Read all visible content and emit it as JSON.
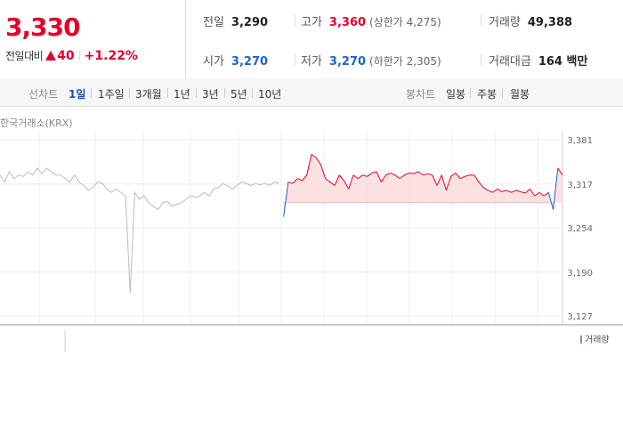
{
  "quote": {
    "price": "3,330",
    "change_label": "전일대비",
    "change_abs": "40",
    "change_pct": "+1.22%",
    "prev_close_label": "전일",
    "prev_close": "3,290",
    "open_label": "시가",
    "open": "3,270",
    "high_label": "고가",
    "high": "3,360",
    "upper_limit": "(상한가 4,275)",
    "low_label": "저가",
    "low": "3,270",
    "lower_limit": "(하한가 2,305)",
    "volume_label": "거래량",
    "volume": "49,388",
    "turnover_label": "거래대금",
    "turnover": "164 백만"
  },
  "period_tabs": {
    "label": "선차트",
    "items": [
      "1일",
      "1주일",
      "3개월",
      "1년",
      "3년",
      "5년",
      "10년"
    ],
    "active": "1일"
  },
  "candle_tabs": {
    "label": "봉차트",
    "items": [
      "일봉",
      "주봉",
      "월봉"
    ]
  },
  "chart_source": "한국거래소(KRX)",
  "volume_legend": "거래량",
  "colors": {
    "up": "#e4002b",
    "down": "#1c63d2",
    "prev_series": "#bbbbbb",
    "fill": "#fbdada"
  },
  "chart_data": {
    "type": "line",
    "title": "",
    "xlabel": "",
    "ylabel": "",
    "yticks": [
      "3,381",
      "3,317",
      "3,254",
      "3,190",
      "3,127"
    ],
    "ylim": [
      3127,
      3381
    ],
    "baseline": 3290,
    "grid": true,
    "series": [
      {
        "x": [
          0,
          2,
          4,
          6,
          8,
          10,
          12,
          14,
          16,
          18,
          20,
          22,
          24,
          26,
          28,
          30,
          32,
          34,
          36,
          38,
          40,
          42,
          44,
          46,
          48,
          50,
          52,
          54,
          56,
          58,
          60,
          62,
          64,
          66,
          68,
          70,
          72,
          74,
          76,
          78,
          80,
          82,
          84,
          86,
          88,
          90,
          92,
          94,
          96,
          98,
          100,
          102,
          104,
          106,
          108,
          110,
          112,
          114,
          116,
          118,
          120
        ],
        "values": [
          3330,
          3320,
          3335,
          3325,
          3330,
          3328,
          3335,
          3330,
          3340,
          3332,
          3340,
          3335,
          3330,
          3330,
          3325,
          3320,
          3330,
          3320,
          3315,
          3308,
          3312,
          3320,
          3318,
          3310,
          3305,
          3310,
          3305,
          3300,
          3160,
          3305,
          3295,
          3300,
          3290,
          3285,
          3280,
          3290,
          3292,
          3285,
          3288,
          3290,
          3295,
          3300,
          3298,
          3300,
          3305,
          3300,
          3310,
          3312,
          3318,
          3314,
          3310,
          3315,
          3320,
          3318,
          3315,
          3318,
          3316,
          3318,
          3315,
          3320,
          3318
        ]
      },
      {
        "x": [
          122,
          124,
          126,
          128,
          130,
          132,
          134,
          136,
          138,
          140,
          142,
          144,
          146,
          148,
          150,
          152,
          154,
          156,
          158,
          160,
          162,
          164,
          166,
          168,
          170,
          172,
          174,
          176,
          178,
          180,
          182,
          184,
          186,
          188,
          190,
          192,
          194,
          196,
          198,
          200,
          202,
          204,
          206,
          208,
          210,
          212,
          214,
          216,
          218,
          220,
          222,
          224,
          226,
          228,
          230,
          232,
          234,
          236,
          238,
          240,
          242
        ],
        "values": [
          3270,
          3320,
          3318,
          3325,
          3322,
          3330,
          3360,
          3355,
          3345,
          3325,
          3320,
          3315,
          3330,
          3322,
          3310,
          3330,
          3325,
          3330,
          3328,
          3333,
          3335,
          3320,
          3330,
          3333,
          3330,
          3325,
          3330,
          3333,
          3332,
          3335,
          3330,
          3332,
          3330,
          3315,
          3330,
          3308,
          3328,
          3333,
          3325,
          3328,
          3330,
          3330,
          3320,
          3312,
          3308,
          3305,
          3310,
          3306,
          3308,
          3305,
          3308,
          3306,
          3304,
          3310,
          3300,
          3305,
          3300,
          3305,
          3280,
          3340,
          3330
        ]
      }
    ]
  }
}
